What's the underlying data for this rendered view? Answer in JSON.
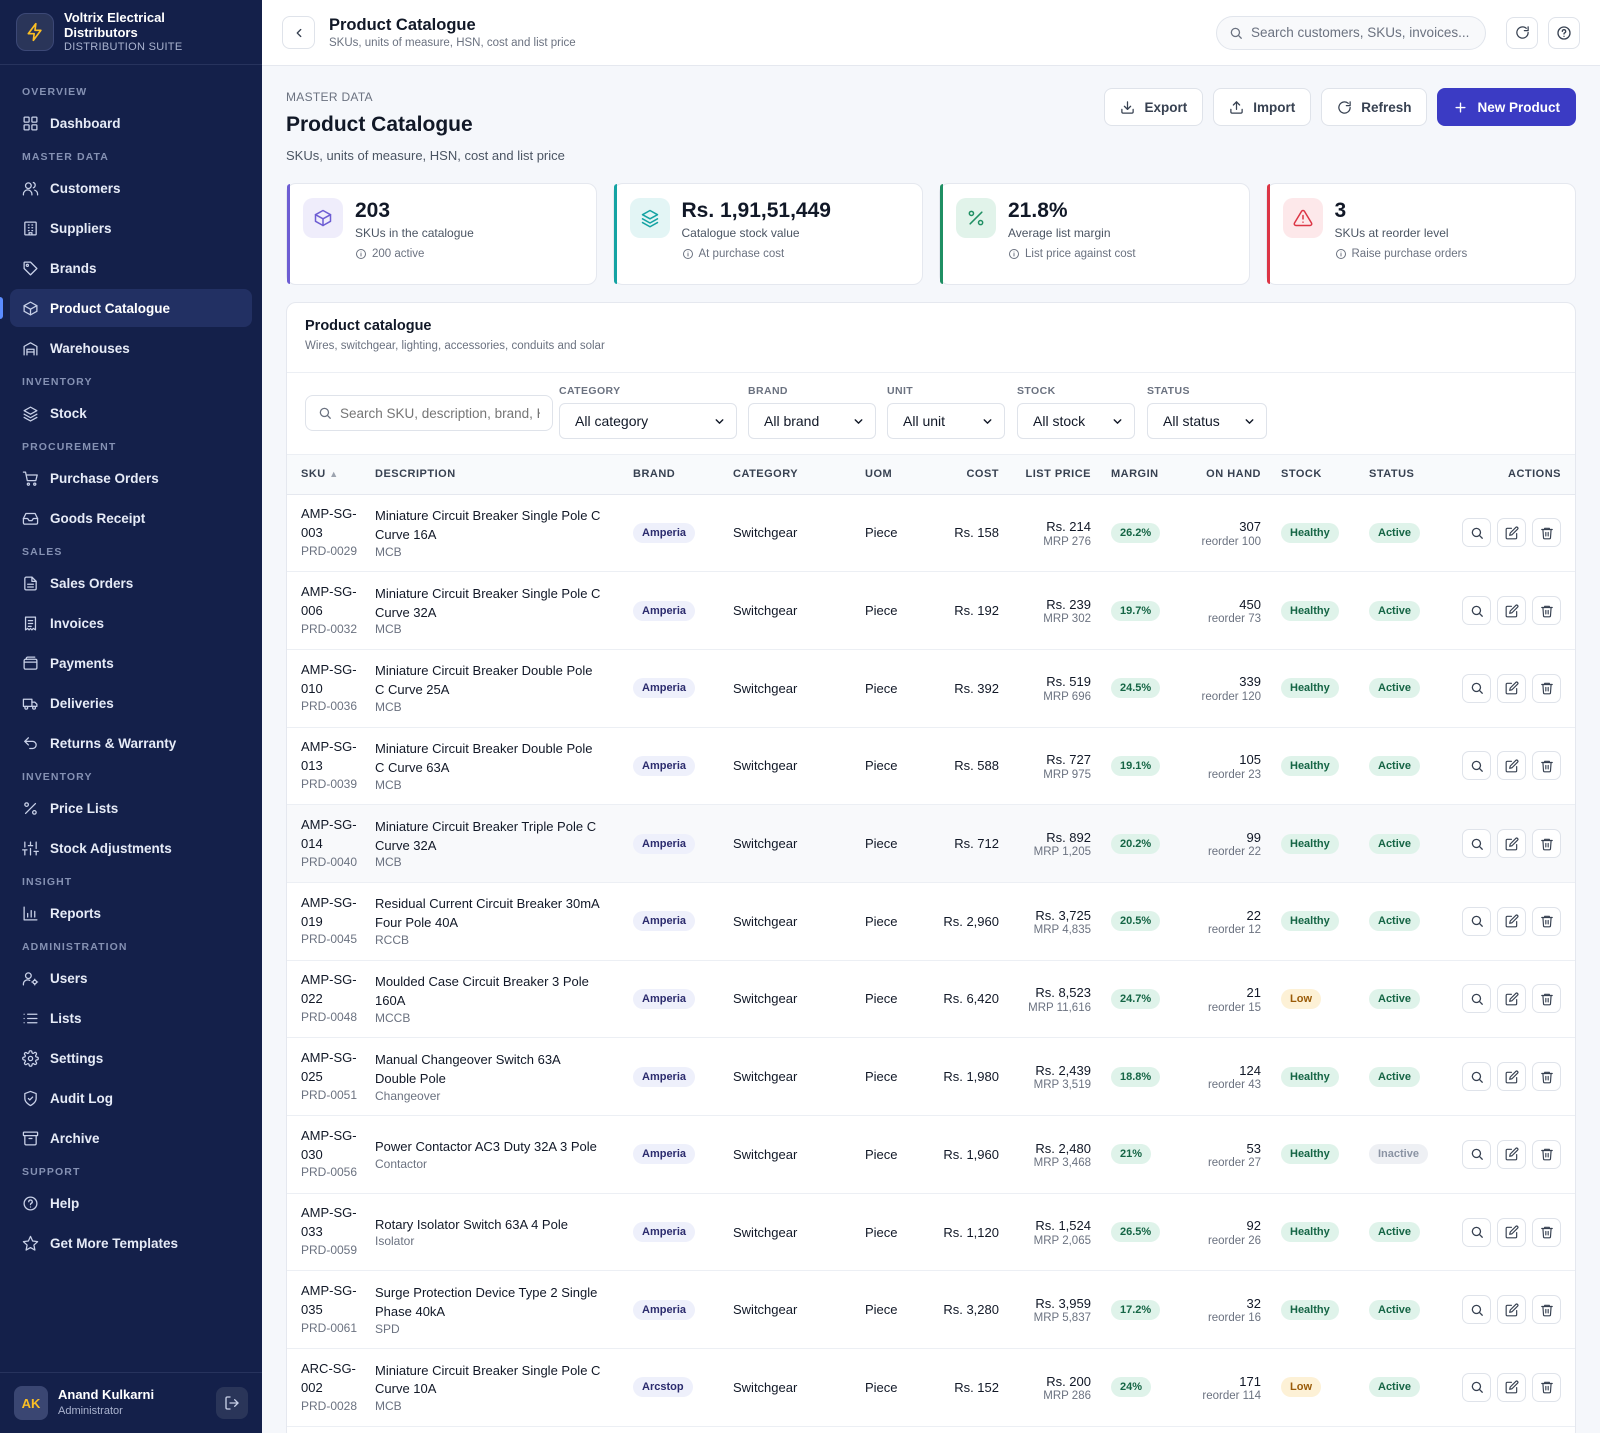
{
  "app": {
    "company_line1": "Voltrix Electrical",
    "company_line2": "Distributors",
    "suite": "DISTRIBUTION SUITE"
  },
  "sidebar": {
    "sections": [
      {
        "title": "OVERVIEW",
        "items": [
          {
            "label": "Dashboard",
            "icon": "grid-icon"
          }
        ]
      },
      {
        "title": "MASTER DATA",
        "items": [
          {
            "label": "Customers",
            "icon": "users-icon"
          },
          {
            "label": "Suppliers",
            "icon": "building-icon"
          },
          {
            "label": "Brands",
            "icon": "tag-icon"
          },
          {
            "label": "Product Catalogue",
            "icon": "box-icon",
            "active": true
          },
          {
            "label": "Warehouses",
            "icon": "warehouse-icon"
          }
        ]
      },
      {
        "title": "INVENTORY",
        "items": [
          {
            "label": "Stock",
            "icon": "layers-icon"
          }
        ]
      },
      {
        "title": "PROCUREMENT",
        "items": [
          {
            "label": "Purchase Orders",
            "icon": "cart-icon"
          },
          {
            "label": "Goods Receipt",
            "icon": "inbox-icon"
          }
        ]
      },
      {
        "title": "SALES",
        "items": [
          {
            "label": "Sales Orders",
            "icon": "file-icon"
          },
          {
            "label": "Invoices",
            "icon": "receipt-icon"
          },
          {
            "label": "Payments",
            "icon": "wallet-icon"
          },
          {
            "label": "Deliveries",
            "icon": "truck-icon"
          },
          {
            "label": "Returns & Warranty",
            "icon": "return-icon"
          }
        ]
      },
      {
        "title": "INVENTORY",
        "items": [
          {
            "label": "Price Lists",
            "icon": "percent-icon"
          },
          {
            "label": "Stock Adjustments",
            "icon": "sliders-icon"
          }
        ]
      },
      {
        "title": "INSIGHT",
        "items": [
          {
            "label": "Reports",
            "icon": "bar-chart-icon"
          }
        ]
      },
      {
        "title": "ADMINISTRATION",
        "items": [
          {
            "label": "Users",
            "icon": "user-cog-icon"
          },
          {
            "label": "Lists",
            "icon": "list-icon"
          },
          {
            "label": "Settings",
            "icon": "gear-icon"
          },
          {
            "label": "Audit Log",
            "icon": "shield-icon"
          },
          {
            "label": "Archive",
            "icon": "archive-icon"
          }
        ]
      },
      {
        "title": "SUPPORT",
        "items": [
          {
            "label": "Help",
            "icon": "help-circle-icon"
          },
          {
            "label": "Get More Templates",
            "icon": "star-icon"
          }
        ]
      }
    ]
  },
  "user": {
    "initials": "AK",
    "name": "Anand Kulkarni",
    "role": "Administrator"
  },
  "topbar": {
    "title": "Product Catalogue",
    "subtitle": "SKUs, units of measure, HSN, cost and list price",
    "search_placeholder": "Search customers, SKUs, invoices..."
  },
  "page": {
    "eyebrow": "MASTER DATA",
    "title": "Product Catalogue",
    "subtitle": "SKUs, units of measure, HSN, cost and list price"
  },
  "actions": {
    "export": "Export",
    "import": "Import",
    "refresh": "Refresh",
    "new": "New Product"
  },
  "stats": [
    {
      "value": "203",
      "label": "SKUs in the catalogue",
      "note": "200 active",
      "icon": "box-icon",
      "color": "#6d5dd3"
    },
    {
      "value": "Rs. 1,91,51,449",
      "label": "Catalogue stock value",
      "note": "At purchase cost",
      "icon": "layers-icon",
      "color": "#14a3a3"
    },
    {
      "value": "21.8%",
      "label": "Average list margin",
      "note": "List price against cost",
      "icon": "percent-icon",
      "color": "#1f8f63"
    },
    {
      "value": "3",
      "label": "SKUs at reorder level",
      "note": "Raise purchase orders",
      "icon": "alert-triangle-icon",
      "color": "#dc3545"
    }
  ],
  "panel": {
    "title": "Product catalogue",
    "subtitle": "Wires, switchgear, lighting, accessories, conduits and solar"
  },
  "filters": {
    "search_placeholder": "Search SKU, description, brand, HSN",
    "category": {
      "label": "CATEGORY",
      "value": "All category"
    },
    "brand": {
      "label": "BRAND",
      "value": "All brand"
    },
    "unit": {
      "label": "UNIT",
      "value": "All unit"
    },
    "stock": {
      "label": "STOCK",
      "value": "All stock"
    },
    "status": {
      "label": "STATUS",
      "value": "All status"
    }
  },
  "table": {
    "columns": {
      "sku": "SKU",
      "description": "DESCRIPTION",
      "brand": "BRAND",
      "category": "CATEGORY",
      "uom": "UOM",
      "cost": "COST",
      "list_price": "LIST PRICE",
      "margin": "MARGIN",
      "on_hand": "ON HAND",
      "stock": "STOCK",
      "status": "STATUS",
      "actions": "ACTIONS"
    },
    "rows": [
      {
        "sku1": "AMP-SG-",
        "sku2": "003",
        "id": "PRD-0029",
        "desc": "Miniature Circuit Breaker Single Pole C Curve 16A",
        "cat_sub": "MCB",
        "brand": "Amperia",
        "category": "Switchgear",
        "uom": "Piece",
        "cost": "Rs. 158",
        "list": "Rs. 214",
        "mrp": "MRP 276",
        "margin": "26.2%",
        "on_hand": "307",
        "reorder": "reorder 100",
        "stock": "Healthy",
        "status": "Active"
      },
      {
        "sku1": "AMP-SG-",
        "sku2": "006",
        "id": "PRD-0032",
        "desc": "Miniature Circuit Breaker Single Pole C Curve 32A",
        "cat_sub": "MCB",
        "brand": "Amperia",
        "category": "Switchgear",
        "uom": "Piece",
        "cost": "Rs. 192",
        "list": "Rs. 239",
        "mrp": "MRP 302",
        "margin": "19.7%",
        "on_hand": "450",
        "reorder": "reorder 73",
        "stock": "Healthy",
        "status": "Active"
      },
      {
        "sku1": "AMP-SG-",
        "sku2": "010",
        "id": "PRD-0036",
        "desc": "Miniature Circuit Breaker Double Pole C Curve 25A",
        "cat_sub": "MCB",
        "brand": "Amperia",
        "category": "Switchgear",
        "uom": "Piece",
        "cost": "Rs. 392",
        "list": "Rs. 519",
        "mrp": "MRP 696",
        "margin": "24.5%",
        "on_hand": "339",
        "reorder": "reorder 120",
        "stock": "Healthy",
        "status": "Active"
      },
      {
        "sku1": "AMP-SG-",
        "sku2": "013",
        "id": "PRD-0039",
        "desc": "Miniature Circuit Breaker Double Pole C Curve 63A",
        "cat_sub": "MCB",
        "brand": "Amperia",
        "category": "Switchgear",
        "uom": "Piece",
        "cost": "Rs. 588",
        "list": "Rs. 727",
        "mrp": "MRP 975",
        "margin": "19.1%",
        "on_hand": "105",
        "reorder": "reorder 23",
        "stock": "Healthy",
        "status": "Active"
      },
      {
        "sku1": "AMP-SG-",
        "sku2": "014",
        "id": "PRD-0040",
        "desc": "Miniature Circuit Breaker Triple Pole C Curve 32A",
        "cat_sub": "MCB",
        "brand": "Amperia",
        "category": "Switchgear",
        "uom": "Piece",
        "cost": "Rs. 712",
        "list": "Rs. 892",
        "mrp": "MRP 1,205",
        "margin": "20.2%",
        "on_hand": "99",
        "reorder": "reorder 22",
        "stock": "Healthy",
        "status": "Active",
        "hl": true
      },
      {
        "sku1": "AMP-SG-",
        "sku2": "019",
        "id": "PRD-0045",
        "desc": "Residual Current Circuit Breaker 30mA Four Pole 40A",
        "cat_sub": "RCCB",
        "brand": "Amperia",
        "category": "Switchgear",
        "uom": "Piece",
        "cost": "Rs. 2,960",
        "list": "Rs. 3,725",
        "mrp": "MRP 4,835",
        "margin": "20.5%",
        "on_hand": "22",
        "reorder": "reorder 12",
        "stock": "Healthy",
        "status": "Active"
      },
      {
        "sku1": "AMP-SG-",
        "sku2": "022",
        "id": "PRD-0048",
        "desc": "Moulded Case Circuit Breaker 3 Pole 160A",
        "cat_sub": "MCCB",
        "brand": "Amperia",
        "category": "Switchgear",
        "uom": "Piece",
        "cost": "Rs. 6,420",
        "list": "Rs. 8,523",
        "mrp": "MRP 11,616",
        "margin": "24.7%",
        "on_hand": "21",
        "reorder": "reorder 15",
        "stock": "Low",
        "status": "Active"
      },
      {
        "sku1": "AMP-SG-",
        "sku2": "025",
        "id": "PRD-0051",
        "desc": "Manual Changeover Switch 63A Double Pole",
        "cat_sub": "Changeover",
        "brand": "Amperia",
        "category": "Switchgear",
        "uom": "Piece",
        "cost": "Rs. 1,980",
        "list": "Rs. 2,439",
        "mrp": "MRP 3,519",
        "margin": "18.8%",
        "on_hand": "124",
        "reorder": "reorder 43",
        "stock": "Healthy",
        "status": "Active"
      },
      {
        "sku1": "AMP-SG-",
        "sku2": "030",
        "id": "PRD-0056",
        "desc": "Power Contactor AC3 Duty 32A 3 Pole",
        "cat_sub": "Contactor",
        "brand": "Amperia",
        "category": "Switchgear",
        "uom": "Piece",
        "cost": "Rs. 1,960",
        "list": "Rs. 2,480",
        "mrp": "MRP 3,468",
        "margin": "21%",
        "on_hand": "53",
        "reorder": "reorder 27",
        "stock": "Healthy",
        "status": "Inactive"
      },
      {
        "sku1": "AMP-SG-",
        "sku2": "033",
        "id": "PRD-0059",
        "desc": "Rotary Isolator Switch 63A 4 Pole",
        "cat_sub": "Isolator",
        "brand": "Amperia",
        "category": "Switchgear",
        "uom": "Piece",
        "cost": "Rs. 1,120",
        "list": "Rs. 1,524",
        "mrp": "MRP 2,065",
        "margin": "26.5%",
        "on_hand": "92",
        "reorder": "reorder 26",
        "stock": "Healthy",
        "status": "Active"
      },
      {
        "sku1": "AMP-SG-",
        "sku2": "035",
        "id": "PRD-0061",
        "desc": "Surge Protection Device Type 2 Single Phase 40kA",
        "cat_sub": "SPD",
        "brand": "Amperia",
        "category": "Switchgear",
        "uom": "Piece",
        "cost": "Rs. 3,280",
        "list": "Rs. 3,959",
        "mrp": "MRP 5,837",
        "margin": "17.2%",
        "on_hand": "32",
        "reorder": "reorder 16",
        "stock": "Healthy",
        "status": "Active"
      },
      {
        "sku1": "ARC-SG-",
        "sku2": "002",
        "id": "PRD-0028",
        "desc": "Miniature Circuit Breaker Single Pole C Curve 10A",
        "cat_sub": "MCB",
        "brand": "Arcstop",
        "category": "Switchgear",
        "uom": "Piece",
        "cost": "Rs. 152",
        "list": "Rs. 200",
        "mrp": "MRP 286",
        "margin": "24%",
        "on_hand": "171",
        "reorder": "reorder 114",
        "stock": "Low",
        "status": "Active"
      }
    ]
  }
}
